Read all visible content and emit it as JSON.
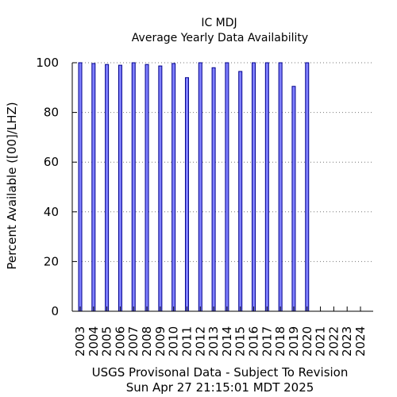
{
  "chart_data": {
    "type": "bar",
    "title": "IC MDJ",
    "subtitle": "Average Yearly Data Availability",
    "xlabel": "",
    "ylabel": "Percent Available ([00]/LHZ)",
    "ylim": [
      0,
      100
    ],
    "yticks": [
      0,
      20,
      40,
      60,
      80,
      100
    ],
    "grid": "y-dotted",
    "bar_color": "#7f7fff",
    "bar_edge_color": "#00008b",
    "categories": [
      "2003",
      "2004",
      "2005",
      "2006",
      "2007",
      "2008",
      "2009",
      "2010",
      "2011",
      "2012",
      "2013",
      "2014",
      "2015",
      "2016",
      "2017",
      "2018",
      "2019",
      "2020",
      "2021",
      "2022",
      "2023",
      "2024"
    ],
    "values": [
      100,
      99.7,
      99.3,
      99,
      100,
      99.3,
      98.7,
      99.7,
      94,
      100,
      98,
      100,
      96.5,
      100,
      100,
      100,
      90.5,
      100,
      0,
      0,
      0,
      0
    ],
    "footer_line1": "USGS Provisonal Data - Subject To Revision",
    "footer_line2": "Sun Apr 27 21:15:01 MDT 2025"
  }
}
